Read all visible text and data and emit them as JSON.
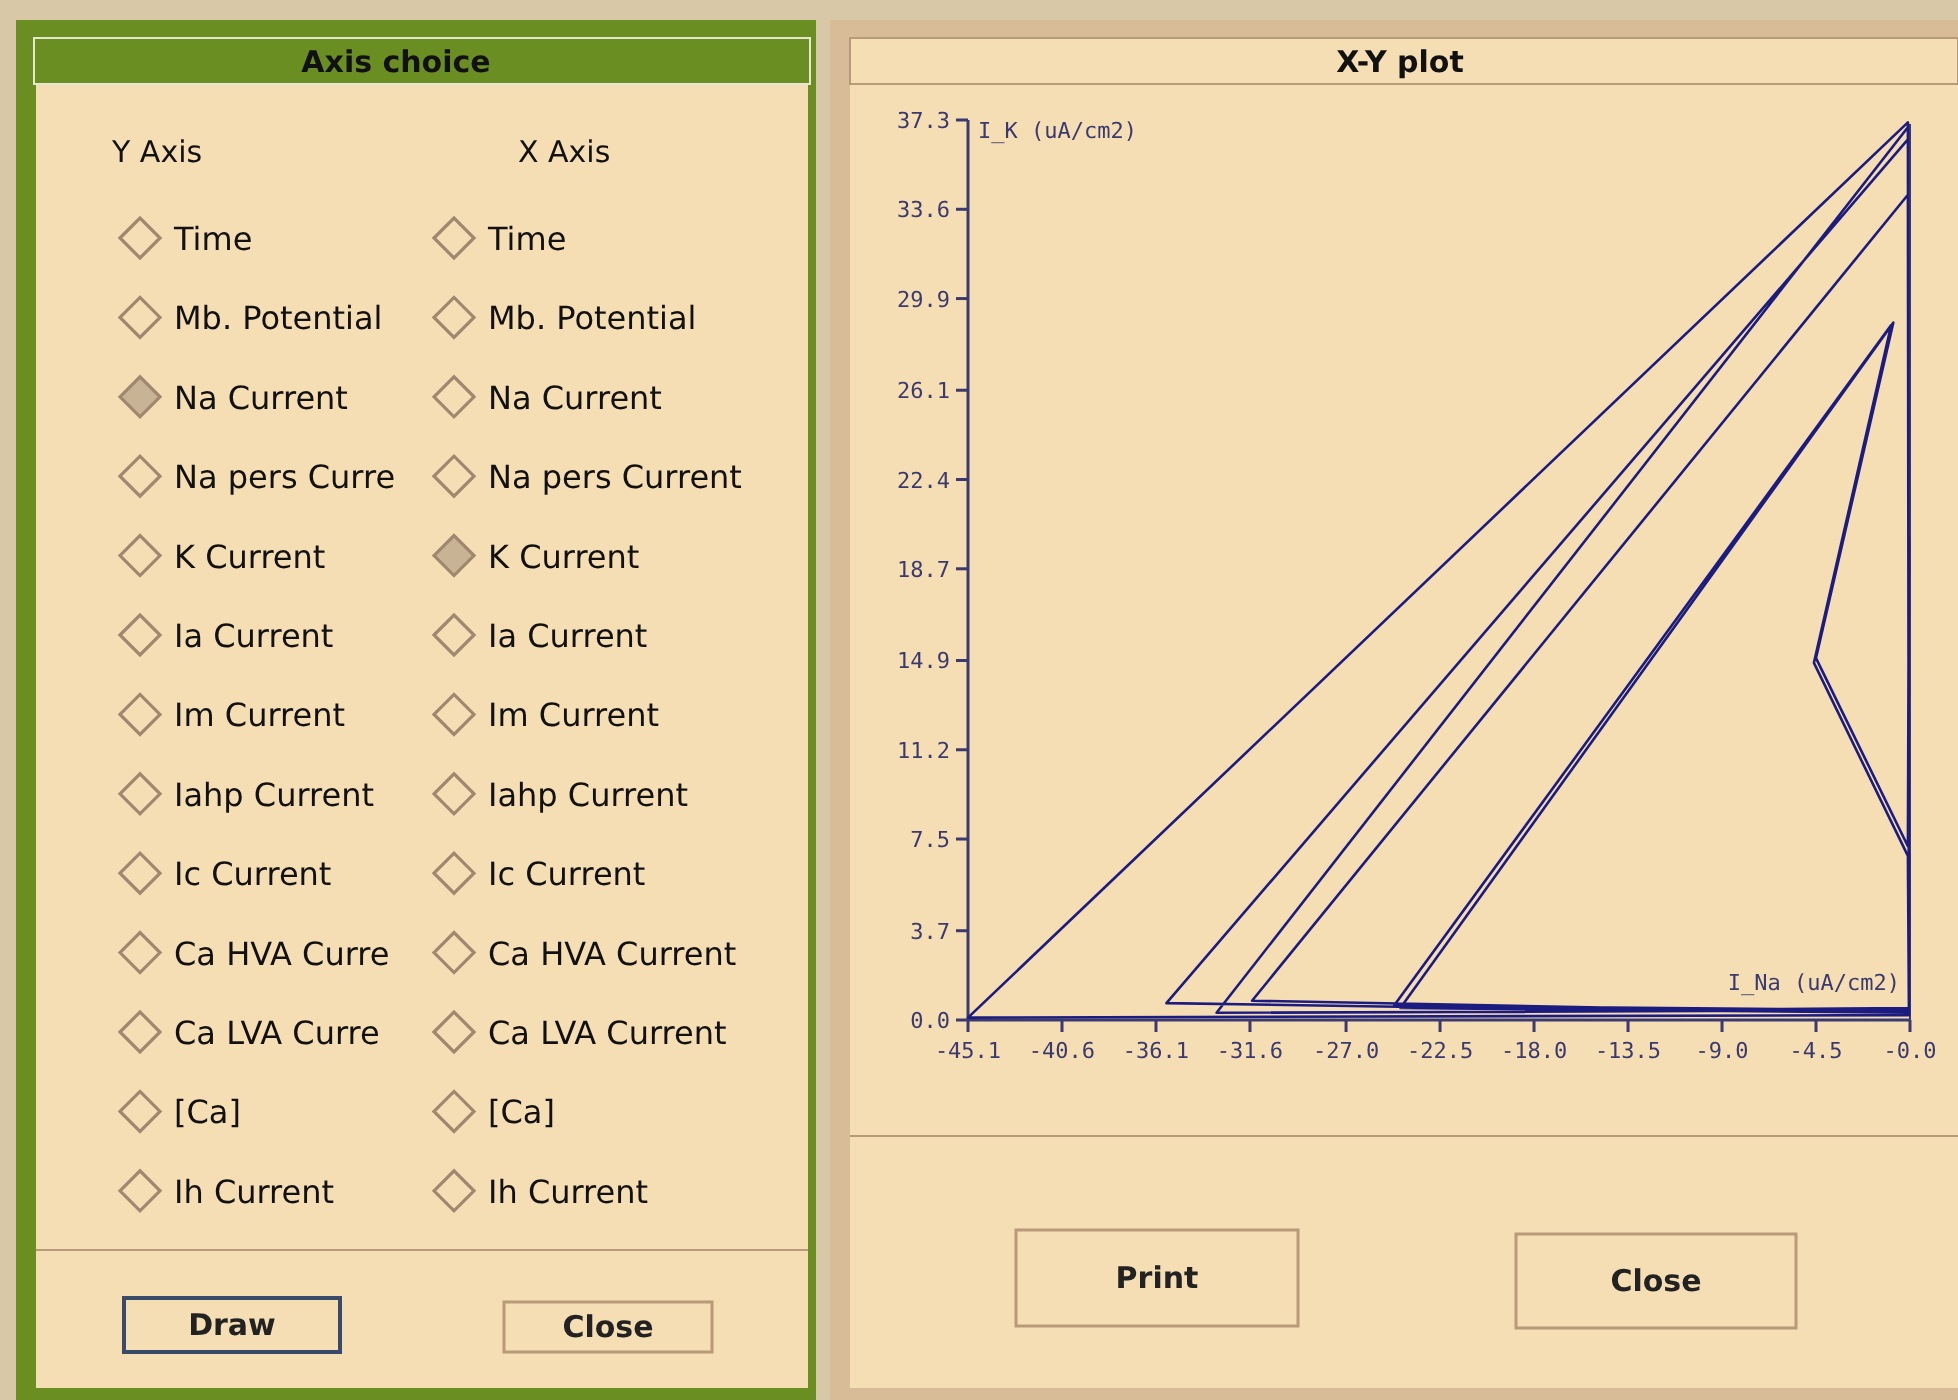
{
  "chart_data": [
    {
      "type": "other",
      "title": "Axis choice",
      "annotations": [
        "Y Axis",
        "X Axis",
        "Time",
        "Time",
        "Mb. Potential",
        "Mb. Potential",
        "Na Current",
        "Na Current",
        "Na pers Curre",
        "Na pers Current",
        "K Current",
        "K Current",
        "Ia Current",
        "Ia Current",
        "Im Current",
        "Im Current",
        "Iahp Current",
        "Iahp Current",
        "Ic Current",
        "Ic Current",
        "Ca HVA Curre",
        "Ca HVA Current",
        "Ca LVA Curre",
        "Ca LVA Current",
        "[Ca]",
        "[Ca]",
        "Ih Current",
        "Ih Current",
        "Draw",
        "Close"
      ]
    },
    {
      "type": "line",
      "title": "X-Y plot",
      "xlabel": "I_Na (uA/cm2)",
      "ylabel": "I_K (uA/cm2)",
      "xlim": [
        -45.1,
        0
      ],
      "ylim": [
        0,
        37.3
      ],
      "xticks": [
        -45.1,
        -40.6,
        -36.1,
        -31.6,
        {
          "value": -27,
          "label": "-27.0"
        },
        -22.5,
        {
          "value": -18,
          "label": "-18.0"
        },
        -13.5,
        {
          "value": -9,
          "label": "-9.0"
        },
        -4.5,
        {
          "value": 0,
          "label": "-0.0"
        }
      ],
      "yticks": [
        {
          "value": 0,
          "label": "0.0"
        },
        3.7,
        7.5,
        11.2,
        14.9,
        18.7,
        22.4,
        26.1,
        29.9,
        33.6,
        37.3
      ],
      "grid": false,
      "marker": "none",
      "line_style": "solid",
      "series": [
        {
          "color": "#1c1c80",
          "x": [
            -0.05,
            -0.05,
            -45.1,
            -0.1,
            -0.05,
            -13.5,
            -35.6,
            -0.1,
            -0.05,
            -33.2,
            -0.1,
            -0.05,
            -13.5,
            -31.5,
            -0.1,
            -0.05,
            -24.7,
            -0.9,
            -4.6,
            -0.1,
            -0.05,
            -24.4,
            -0.8,
            -4.5,
            -0.1,
            -0.05
          ],
          "values": [
            7.0,
            0.2,
            0.1,
            37.2,
            0.5,
            0.4,
            0.7,
            36.5,
            0.4,
            0.3,
            37.0,
            0.3,
            0.5,
            0.8,
            34.2,
            0.4,
            0.6,
            28.8,
            14.8,
            6.8,
            0.3,
            0.5,
            28.9,
            15.0,
            7.2,
            20.0
          ]
        }
      ],
      "annotations": [
        "Print",
        "Close"
      ]
    }
  ]
}
